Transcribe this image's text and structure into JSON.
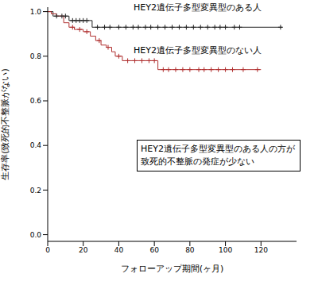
{
  "chart_data": {
    "type": "line",
    "x_label": "フォローアップ期間(ヶ月)",
    "y_label": "生存率(致死的不整脈がない)",
    "annotation": "HEY2遺伝子多型変異型のある人の方が致死的不整脈の発症が少ない",
    "xlim": [
      0,
      140
    ],
    "xticks": [
      0,
      20,
      40,
      60,
      80,
      100,
      120
    ],
    "ylim": [
      -0.03,
      1.02
    ],
    "yticks": [
      {
        "value": 0,
        "label": "0.0"
      },
      0.2,
      0.4,
      0.6,
      0.8,
      {
        "value": 1,
        "label": "1.0"
      }
    ],
    "grid": false,
    "series": [
      {
        "name": "HEY2遺伝子多型変異型のある人",
        "color": "#222222",
        "line_style": "step",
        "marker": "plus",
        "x": [
          0,
          3,
          12,
          25,
          132
        ],
        "values": [
          1.0,
          0.98,
          0.96,
          0.93,
          0.93
        ],
        "censored": [
          5,
          8,
          10,
          14,
          16,
          18,
          20,
          22,
          28,
          32,
          35,
          40,
          44,
          48,
          51,
          55,
          58,
          62,
          66,
          70,
          74,
          78,
          82,
          86,
          90,
          94,
          97,
          100,
          105,
          108,
          131
        ]
      },
      {
        "name": "HEY2遺伝子多型変異型のない人",
        "color": "#b03030",
        "line_style": "step",
        "marker": "plus",
        "x": [
          0,
          2,
          5,
          9,
          12,
          15,
          20,
          24,
          27,
          30,
          33,
          36,
          38,
          42,
          62,
          120
        ],
        "values": [
          1.0,
          0.99,
          0.98,
          0.95,
          0.93,
          0.92,
          0.91,
          0.89,
          0.87,
          0.85,
          0.84,
          0.82,
          0.8,
          0.78,
          0.74,
          0.74
        ],
        "censored": [
          14,
          18,
          22,
          29,
          34,
          40,
          45,
          49,
          53,
          57,
          60,
          65,
          68,
          72,
          76,
          80,
          85,
          88,
          92,
          96,
          100,
          104,
          110,
          118
        ]
      }
    ]
  }
}
